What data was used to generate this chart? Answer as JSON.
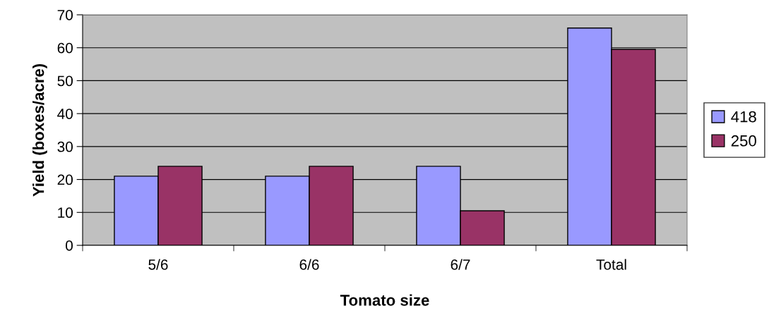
{
  "chart_data": {
    "type": "bar",
    "xlabel": "Tomato size",
    "ylabel": "Yield (boxes/acre)",
    "categories": [
      "5/6",
      "6/6",
      "6/7",
      "Total"
    ],
    "series": [
      {
        "name": "418",
        "color": "#9999ff",
        "values": [
          21,
          21,
          24,
          66
        ]
      },
      {
        "name": "250",
        "color": "#993366",
        "values": [
          24,
          24,
          10.5,
          59.5
        ]
      }
    ],
    "ylim": [
      0,
      70
    ],
    "yticks": [
      0,
      10,
      20,
      30,
      40,
      50,
      60,
      70
    ],
    "grid": "y",
    "legend": "right"
  }
}
